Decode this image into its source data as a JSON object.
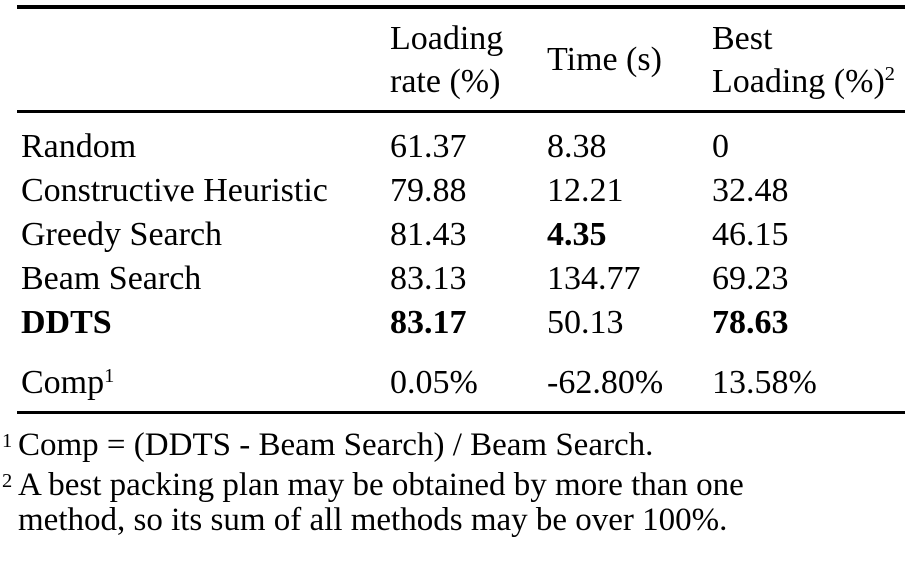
{
  "table": {
    "header": {
      "method": "",
      "loading": {
        "line1": "Loading",
        "line2": "rate (%)"
      },
      "time": {
        "line1": "Time (s)"
      },
      "best": {
        "line1": "Best",
        "line2": "Loading (%)",
        "sup": "2"
      }
    },
    "rows": [
      {
        "method": "Random",
        "loading": "61.37",
        "time": "8.38",
        "best": "0"
      },
      {
        "method": "Constructive Heuristic",
        "loading": "79.88",
        "time": "12.21",
        "best": "32.48"
      },
      {
        "method": "Greedy Search",
        "loading": "81.43",
        "time": "4.35",
        "best": "46.15"
      },
      {
        "method": "Beam Search",
        "loading": "83.13",
        "time": "134.77",
        "best": "69.23"
      },
      {
        "method": "DDTS",
        "loading": "83.17",
        "time": "50.13",
        "best": "78.63"
      }
    ],
    "comp_row": {
      "method": "Comp",
      "sup": "1",
      "loading": "0.05%",
      "time": "-62.80%",
      "best": "13.58%"
    }
  },
  "footnotes": [
    {
      "sup": "1",
      "lines": [
        "Comp = (DDTS - Beam Search) / Beam Search."
      ]
    },
    {
      "sup": "2",
      "lines": [
        "A best packing plan may be obtained by more than one",
        "method, so its sum of all methods may be over 100%."
      ]
    }
  ],
  "colors": {
    "text": "#000000",
    "background": "#ffffff",
    "rule": "#000000"
  }
}
